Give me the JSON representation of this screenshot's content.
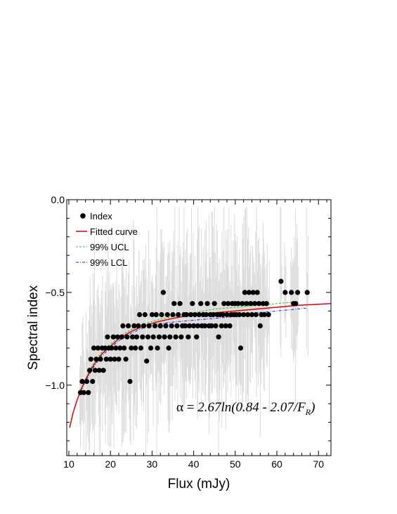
{
  "chart_data": {
    "type": "scatter",
    "xlabel": "Flux (mJy)",
    "ylabel": "Spectral index",
    "xlim": [
      9.5,
      73
    ],
    "ylim": [
      -1.38,
      0.0
    ],
    "x_ticks": [
      10,
      20,
      30,
      40,
      50,
      60,
      70
    ],
    "x_tick_labels": [
      "10",
      "20",
      "30",
      "40",
      "50",
      "60",
      "70"
    ],
    "y_ticks": [
      0.0,
      -0.5,
      -1.0
    ],
    "y_tick_labels": [
      "0.0",
      "−0.5",
      "−1.0"
    ],
    "grid": false,
    "legend_position": "top-left",
    "legend": [
      {
        "label": "Index",
        "style": "marker",
        "color": "#000000"
      },
      {
        "label": "Fitted curve",
        "style": "solid",
        "color": "#e00000"
      },
      {
        "label": "99% UCL",
        "style": "dashed",
        "color": "#22cc22"
      },
      {
        "label": "99% LCL",
        "style": "dashdot",
        "color": "#2222dd"
      }
    ],
    "annotation": {
      "alpha_symbol": "α",
      "equals": " = ",
      "body": "2.67ln(0.84 - 2.07/F",
      "subscript": "R",
      "close": ")"
    },
    "fitted_curve": {
      "label": "Fitted curve",
      "x": [
        10.2,
        11,
        12,
        13,
        14,
        15,
        16,
        17,
        18,
        20,
        22,
        25,
        28,
        31,
        35,
        40,
        45,
        50,
        55,
        60,
        65,
        73
      ],
      "y": [
        -1.23,
        -1.15,
        -1.08,
        -1.02,
        -0.97,
        -0.93,
        -0.89,
        -0.86,
        -0.83,
        -0.79,
        -0.75,
        -0.71,
        -0.68,
        -0.66,
        -0.64,
        -0.62,
        -0.61,
        -0.6,
        -0.59,
        -0.58,
        -0.57,
        -0.56
      ]
    },
    "ucl": {
      "label": "99% UCL",
      "x": [
        13,
        14,
        15,
        16,
        18,
        20,
        22,
        25,
        28,
        31,
        35,
        40,
        45,
        50,
        55,
        60,
        65
      ],
      "y": [
        -1.03,
        -0.97,
        -0.92,
        -0.88,
        -0.82,
        -0.78,
        -0.74,
        -0.7,
        -0.67,
        -0.65,
        -0.63,
        -0.61,
        -0.59,
        -0.58,
        -0.57,
        -0.56,
        -0.55
      ]
    },
    "lcl": {
      "label": "99% LCL",
      "x": [
        13,
        14,
        15,
        16,
        18,
        20,
        22,
        25,
        28,
        31,
        35,
        40,
        45,
        50,
        55,
        60,
        67
      ],
      "y": [
        -1.03,
        -0.98,
        -0.94,
        -0.9,
        -0.84,
        -0.8,
        -0.76,
        -0.72,
        -0.69,
        -0.67,
        -0.66,
        -0.65,
        -0.64,
        -0.63,
        -0.61,
        -0.6,
        -0.585
      ]
    },
    "series": [
      {
        "name": "Index",
        "points": [
          [
            12.8,
            -1.04
          ],
          [
            13.2,
            -0.98
          ],
          [
            13.6,
            -1.04
          ],
          [
            14.3,
            -0.98
          ],
          [
            14.7,
            -1.04
          ],
          [
            15.0,
            -0.92
          ],
          [
            15.3,
            -0.86
          ],
          [
            15.7,
            -0.98
          ],
          [
            16.0,
            -0.8
          ],
          [
            16.3,
            -0.92
          ],
          [
            16.6,
            -0.86
          ],
          [
            17.0,
            -0.8
          ],
          [
            17.3,
            -0.92
          ],
          [
            17.6,
            -0.86
          ],
          [
            18.0,
            -0.8
          ],
          [
            18.3,
            -0.92
          ],
          [
            18.7,
            -0.8
          ],
          [
            19.0,
            -0.86
          ],
          [
            19.3,
            -0.74
          ],
          [
            19.6,
            -0.8
          ],
          [
            20.0,
            -0.86
          ],
          [
            20.3,
            -0.8
          ],
          [
            20.7,
            -0.74
          ],
          [
            21.0,
            -0.86
          ],
          [
            21.3,
            -0.8
          ],
          [
            21.7,
            -0.74
          ],
          [
            22.0,
            -0.86
          ],
          [
            22.3,
            -0.8
          ],
          [
            22.7,
            -0.74
          ],
          [
            23.0,
            -0.68
          ],
          [
            23.3,
            -0.8
          ],
          [
            23.7,
            -0.86
          ],
          [
            24.0,
            -0.74
          ],
          [
            24.3,
            -0.68
          ],
          [
            24.7,
            -0.98
          ],
          [
            25.0,
            -0.8
          ],
          [
            25.3,
            -0.74
          ],
          [
            25.7,
            -0.68
          ],
          [
            26.0,
            -0.8
          ],
          [
            26.3,
            -0.74
          ],
          [
            26.7,
            -0.68
          ],
          [
            27.0,
            -0.62
          ],
          [
            27.3,
            -0.8
          ],
          [
            27.7,
            -0.74
          ],
          [
            28.0,
            -0.68
          ],
          [
            28.3,
            -0.62
          ],
          [
            28.7,
            -0.87
          ],
          [
            29.0,
            -0.74
          ],
          [
            29.3,
            -0.68
          ],
          [
            29.7,
            -0.8
          ],
          [
            30.0,
            -0.62
          ],
          [
            30.3,
            -0.74
          ],
          [
            30.7,
            -0.68
          ],
          [
            31.0,
            -0.62
          ],
          [
            31.3,
            -0.8
          ],
          [
            31.7,
            -0.74
          ],
          [
            32.0,
            -0.68
          ],
          [
            32.3,
            -0.62
          ],
          [
            32.7,
            -0.5
          ],
          [
            33.0,
            -0.74
          ],
          [
            33.3,
            -0.68
          ],
          [
            33.7,
            -0.62
          ],
          [
            34.0,
            -0.8
          ],
          [
            34.3,
            -0.74
          ],
          [
            34.7,
            -0.68
          ],
          [
            35.0,
            -0.62
          ],
          [
            35.3,
            -0.56
          ],
          [
            35.7,
            -0.74
          ],
          [
            36.0,
            -0.68
          ],
          [
            36.3,
            -0.62
          ],
          [
            36.7,
            -0.56
          ],
          [
            37.0,
            -0.74
          ],
          [
            37.3,
            -0.68
          ],
          [
            37.7,
            -0.62
          ],
          [
            38.0,
            -0.68
          ],
          [
            38.3,
            -0.62
          ],
          [
            38.7,
            -0.74
          ],
          [
            39.0,
            -0.68
          ],
          [
            39.3,
            -0.62
          ],
          [
            39.7,
            -0.56
          ],
          [
            40.0,
            -0.68
          ],
          [
            40.3,
            -0.62
          ],
          [
            40.7,
            -0.74
          ],
          [
            41.0,
            -0.68
          ],
          [
            41.3,
            -0.62
          ],
          [
            41.7,
            -0.56
          ],
          [
            42.0,
            -0.68
          ],
          [
            42.3,
            -0.62
          ],
          [
            42.7,
            -0.68
          ],
          [
            43.0,
            -0.62
          ],
          [
            43.3,
            -0.56
          ],
          [
            43.7,
            -0.68
          ],
          [
            44.0,
            -0.62
          ],
          [
            44.3,
            -0.68
          ],
          [
            44.7,
            -0.62
          ],
          [
            45.0,
            -0.56
          ],
          [
            45.3,
            -0.68
          ],
          [
            45.7,
            -0.62
          ],
          [
            46.0,
            -0.74
          ],
          [
            46.3,
            -0.62
          ],
          [
            46.7,
            -0.68
          ],
          [
            47.0,
            -0.62
          ],
          [
            47.3,
            -0.56
          ],
          [
            47.7,
            -0.68
          ],
          [
            48.0,
            -0.62
          ],
          [
            48.3,
            -0.56
          ],
          [
            48.7,
            -0.68
          ],
          [
            49.0,
            -0.62
          ],
          [
            49.3,
            -0.56
          ],
          [
            49.7,
            -0.62
          ],
          [
            50.0,
            -0.56
          ],
          [
            50.3,
            -0.62
          ],
          [
            50.7,
            -0.56
          ],
          [
            51.0,
            -0.62
          ],
          [
            51.3,
            -0.8
          ],
          [
            51.7,
            -0.56
          ],
          [
            52.0,
            -0.62
          ],
          [
            52.3,
            -0.5
          ],
          [
            52.7,
            -0.56
          ],
          [
            53.0,
            -0.62
          ],
          [
            53.3,
            -0.5
          ],
          [
            53.7,
            -0.56
          ],
          [
            54.0,
            -0.62
          ],
          [
            54.3,
            -0.5
          ],
          [
            54.7,
            -0.56
          ],
          [
            55.0,
            -0.62
          ],
          [
            55.3,
            -0.5
          ],
          [
            55.7,
            -0.56
          ],
          [
            56.0,
            -0.68
          ],
          [
            56.3,
            -0.62
          ],
          [
            56.7,
            -0.56
          ],
          [
            57.0,
            -0.62
          ],
          [
            57.5,
            -0.56
          ],
          [
            58.0,
            -0.62
          ],
          [
            61.0,
            -0.44
          ],
          [
            62.0,
            -0.5
          ],
          [
            63.5,
            -0.5
          ],
          [
            64.0,
            -0.56
          ],
          [
            64.5,
            -0.56
          ],
          [
            65.0,
            -0.5
          ],
          [
            67.3,
            -0.5
          ]
        ]
      }
    ]
  }
}
